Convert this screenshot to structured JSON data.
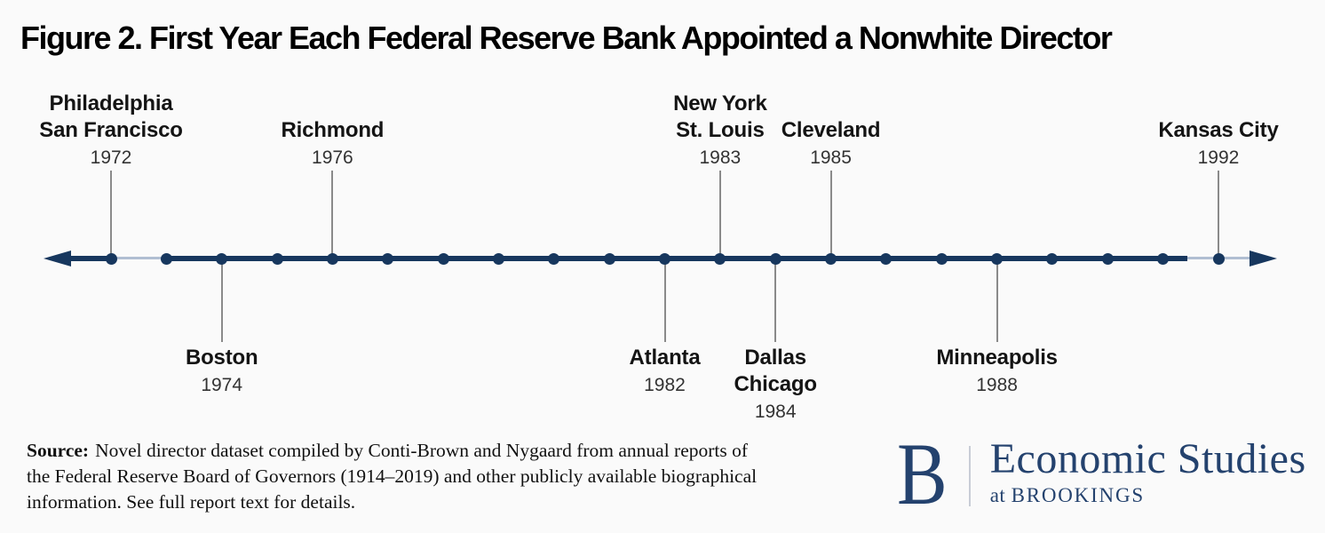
{
  "chart_data": {
    "type": "timeline",
    "title": "Figure 2. First Year Each Federal Reserve Bank Appointed a Nonwhite Director",
    "axis": {
      "start": 1972,
      "end": 1992,
      "step": 1,
      "orientation": "horizontal",
      "arrows": "both"
    },
    "events": [
      {
        "banks": [
          "Philadelphia",
          "San Francisco"
        ],
        "year": 1972,
        "side": "above"
      },
      {
        "banks": [
          "Boston"
        ],
        "year": 1974,
        "side": "below"
      },
      {
        "banks": [
          "Richmond"
        ],
        "year": 1976,
        "side": "above"
      },
      {
        "banks": [
          "Atlanta"
        ],
        "year": 1982,
        "side": "below"
      },
      {
        "banks": [
          "New York",
          "St. Louis"
        ],
        "year": 1983,
        "side": "above"
      },
      {
        "banks": [
          "Dallas",
          "Chicago"
        ],
        "year": 1984,
        "side": "below"
      },
      {
        "banks": [
          "Cleveland"
        ],
        "year": 1985,
        "side": "above"
      },
      {
        "banks": [
          "Minneapolis"
        ],
        "year": 1988,
        "side": "below"
      },
      {
        "banks": [
          "Kansas City"
        ],
        "year": 1992,
        "side": "above"
      }
    ],
    "colors": {
      "axis": "#17375e",
      "dot": "#17375e",
      "connector": "#8a8a8a",
      "bank_label": "#141414",
      "year_label": "#333333"
    }
  },
  "source": {
    "label": "Source:",
    "lines": [
      "Novel director dataset compiled by Conti-Brown and Nygaard from annual reports of",
      "the Federal Reserve Board of Governors (1914–2019) and other publicly available biographical",
      "information. See full report text for details."
    ]
  },
  "logo": {
    "monogram": "B",
    "org": "Economic Studies",
    "tagline_prefix": "at",
    "tagline_org": "BROOKINGS",
    "color": "#24426e"
  }
}
